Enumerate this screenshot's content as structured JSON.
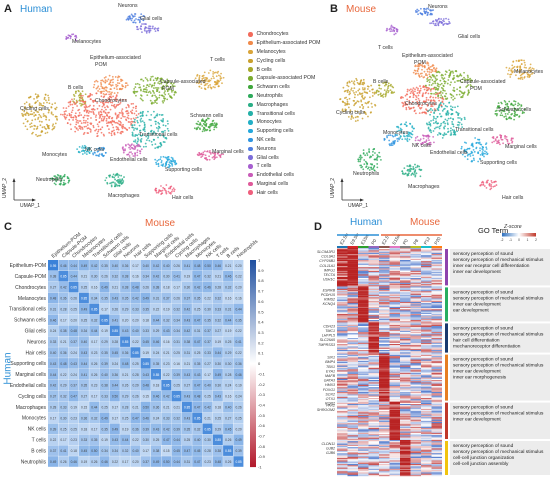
{
  "panels": {
    "A": {
      "letter": "A",
      "title": "Human",
      "title_color": "#2c8fd6",
      "xaxis": "UMAP_1",
      "yaxis": "UMAP_2"
    },
    "B": {
      "letter": "B",
      "title": "Mouse",
      "title_color": "#e8673c",
      "xaxis": "UMAP_1",
      "yaxis": "UMAP_2"
    },
    "C": {
      "letter": "C",
      "col_title": "Mouse",
      "row_title": "Human",
      "col_title_color": "#e8673c",
      "row_title_color": "#2c8fd6"
    },
    "D": {
      "letter": "D",
      "human_label": "Human",
      "mouse_label": "Mouse",
      "go_title": "GO Term",
      "zscore_label": "Z-score"
    }
  },
  "legend": [
    {
      "label": "Chondrocytes",
      "color": "#f26b5b"
    },
    {
      "label": "Epithelium-associated POM",
      "color": "#f08a4b"
    },
    {
      "label": "Melanocytes",
      "color": "#d9a53a"
    },
    {
      "label": "Cycling cells",
      "color": "#c9a02e"
    },
    {
      "label": "B cells",
      "color": "#a7a92c"
    },
    {
      "label": "Capsule-associated POM",
      "color": "#7aab2e"
    },
    {
      "label": "Schwann cells",
      "color": "#3fa63c"
    },
    {
      "label": "Neutrophils",
      "color": "#2eaa5b"
    },
    {
      "label": "Macrophages",
      "color": "#2aae86"
    },
    {
      "label": "Transitional cells",
      "color": "#25b0a8"
    },
    {
      "label": "Monocytes",
      "color": "#22afc6"
    },
    {
      "label": "Supporting cells",
      "color": "#24a7dc"
    },
    {
      "label": "NK cells",
      "color": "#2f95e0"
    },
    {
      "label": "Neurons",
      "color": "#4f7fe0"
    },
    {
      "label": "Glial cells",
      "color": "#7c6dd9"
    },
    {
      "label": "T cells",
      "color": "#a65fcf"
    },
    {
      "label": "Endothelial cells",
      "color": "#c85bb8"
    },
    {
      "label": "Marginal cells",
      "color": "#df5a9a"
    },
    {
      "label": "Hair cells",
      "color": "#ef5f7d"
    }
  ],
  "umap_human_labels": [
    {
      "text": "Neurons"
    },
    {
      "text": "Glial cells"
    },
    {
      "text": "Melanocytes"
    },
    {
      "text": "T cells"
    },
    {
      "text": "Epithelium-associated"
    },
    {
      "text": "POM"
    },
    {
      "text": "B cells"
    },
    {
      "text": "Capsule-associated"
    },
    {
      "text": "POM"
    },
    {
      "text": "Chondrocytes"
    },
    {
      "text": "Schwann cells"
    },
    {
      "text": "Cycling cells"
    },
    {
      "text": "Transitional cells"
    },
    {
      "text": "Monocytes"
    },
    {
      "text": "NK cells"
    },
    {
      "text": "Endothelial cells"
    },
    {
      "text": "Marginal cells"
    },
    {
      "text": "Supporting cells"
    },
    {
      "text": "Neutrophils"
    },
    {
      "text": "Macrophages"
    },
    {
      "text": "Hair cells"
    }
  ],
  "umap_mouse_labels": [
    {
      "text": "Neurons"
    },
    {
      "text": "Glial cells"
    },
    {
      "text": "T cells"
    },
    {
      "text": "Epithelium-associated"
    },
    {
      "text": "POM"
    },
    {
      "text": "B cells"
    },
    {
      "text": "Melanocytes"
    },
    {
      "text": "Capsule-associated"
    },
    {
      "text": "POM"
    },
    {
      "text": "Chondrocytes"
    },
    {
      "text": "Schwann cells"
    },
    {
      "text": "Cycling cells"
    },
    {
      "text": "Transitional cells"
    },
    {
      "text": "Monocytes"
    },
    {
      "text": "NK cells"
    },
    {
      "text": "Endothelial cells"
    },
    {
      "text": "Marginal cells"
    },
    {
      "text": "Supporting cells"
    },
    {
      "text": "Neutrophils"
    },
    {
      "text": "Macrophages"
    },
    {
      "text": "Hair cells"
    }
  ],
  "heatmap": {
    "cols": [
      "Epithelium-POM",
      "Capsule-POM",
      "Chondrocytes",
      "Melanocytes",
      "Transitional cells",
      "Schwann cells",
      "Glial cells",
      "Neurons",
      "Hair cells",
      "Supporting cells",
      "Marginal cells",
      "Endothelial cells",
      "Cycling cells",
      "Macrophages",
      "Monocytes",
      "NK cells",
      "T cells",
      "B cells",
      "Neutrophils"
    ],
    "rows": [
      "Epithelium-POM",
      "Capsule-POM",
      "Chondrocytes",
      "Melanocytes",
      "Transitional cells",
      "Schwann cells",
      "Glial cells",
      "Neurons",
      "Hair cells",
      "Supporting cells",
      "Marginal cells",
      "Endothelial cells",
      "Cycling cells",
      "Macrophages",
      "Monocytes",
      "NK cells",
      "T cells",
      "B cells",
      "Neutrophils"
    ],
    "colorbar_ticks": [
      "1",
      "0.9",
      "0.8",
      "0.7",
      "0.6",
      "0.5",
      "0.4",
      "0.3",
      "0.2",
      "0.1",
      "0",
      "-0.1",
      "-0.2",
      "-0.3",
      "-0.4",
      "-0.5",
      "-0.6",
      "-0.7",
      "-0.8",
      "-0.9",
      "-1"
    ]
  },
  "heatmap_D": {
    "col_labels": [
      "E2.5w",
      "E9.5w",
      "E15w",
      "P0",
      "E2.5",
      "E15w",
      "P0",
      "P8",
      "P12",
      "P20"
    ],
    "col_colors": [
      "#1f77b4",
      "#d62728",
      "#2ca02c",
      "#9467bd",
      "#8c564b",
      "#e377c2",
      "#7f7f7f",
      "#bcbd22",
      "#17becf",
      "#ff7f0e"
    ],
    "zscore_ticks": [
      "-2",
      "-1",
      "0",
      "1",
      "2"
    ],
    "genes": [
      [
        "SLC9A3R1",
        "COL9A1",
        "CYP26B1",
        "COL11A1",
        "IMPG1",
        "TECTA",
        "USH1C"
      ],
      [
        "ESRRB",
        "PCDH15",
        "RIMS2",
        "KCNQ4"
      ],
      [
        "CDH23",
        "TMC1",
        "LHFPL5",
        "SLC26A5",
        "TMPRSS3"
      ],
      [
        "SIX1",
        "BMP4",
        "TBX1",
        "EYA1",
        "MAFB",
        "GATA3",
        "HMX3",
        "FOXG1",
        "SOX2",
        "OTX1",
        "ROR2"
      ],
      [
        "PAX2",
        "SHROOM2"
      ],
      [
        "CLDN11",
        "GJB2",
        "GJB6"
      ]
    ],
    "go_terms": [
      {
        "color": "#8e44ad",
        "terms": [
          "sensory perception of sound",
          "sensory perception of mechanical stimulus",
          "inner ear receptor cell differentiation",
          "inner ear development"
        ]
      },
      {
        "color": "#27ae60",
        "terms": [
          "sensory perception of sound",
          "sensory perception of mechanical stimulus",
          "inner ear development",
          "ear development"
        ]
      },
      {
        "color": "#1a3a6e",
        "terms": [
          "sensory perception of sound",
          "sensory perception of mechanical stimulus",
          "hair cell differentiation",
          "mechanoreceptor differentiation"
        ]
      },
      {
        "color": "#e67e22",
        "terms": [
          "sensory perception of sound",
          "sensory perception of mechanical stimulus",
          "inner ear development",
          "inner ear morphogenesis"
        ]
      },
      {
        "color": "#c0392b",
        "terms": [
          "sensory perception of sound",
          "sensory perception of mechanical stimulus",
          "inner ear development"
        ]
      },
      {
        "color": "#f1c40f",
        "terms": [
          "sensory perception of sound",
          "sensory perception of mechanical stimulus",
          "cell-cell junction organization",
          "cell-cell junction assembly"
        ]
      }
    ]
  }
}
